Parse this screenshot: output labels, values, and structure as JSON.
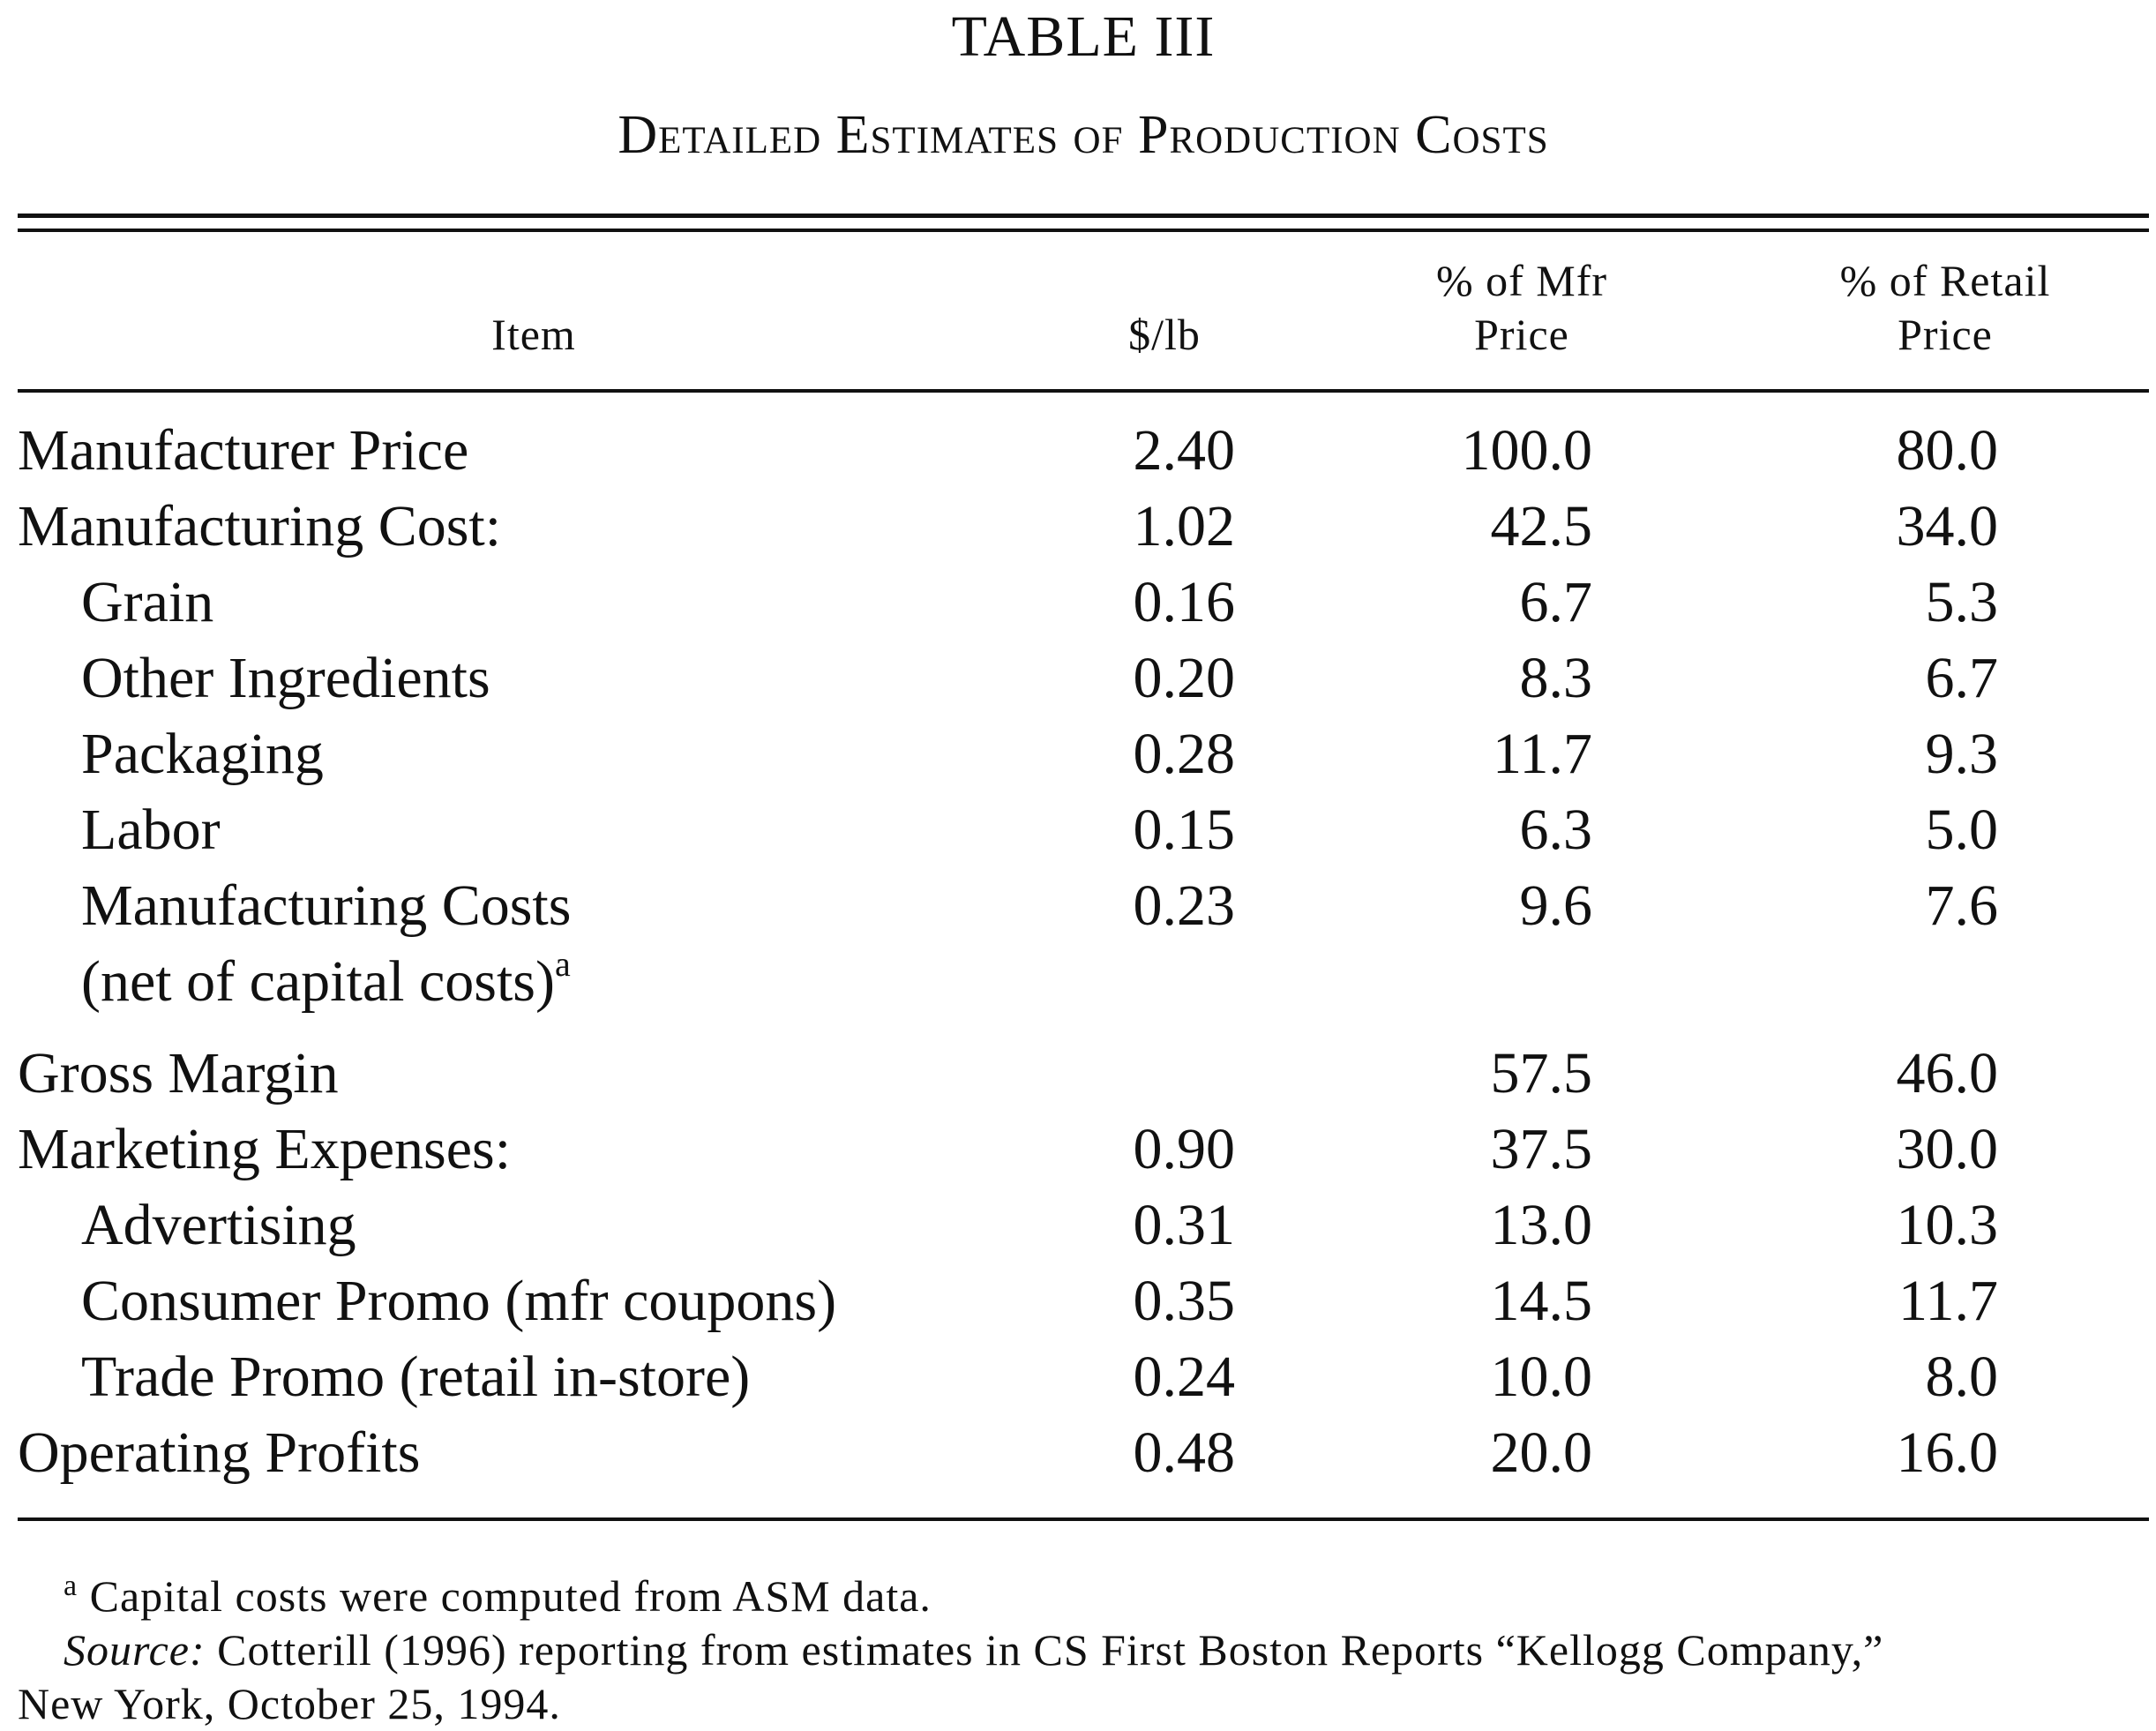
{
  "table": {
    "number": "TABLE III",
    "title": "Detailed Estimates of Production Costs",
    "headers": {
      "item": "Item",
      "per_lb": "$/lb",
      "pct_mfr_line1": "% of Mfr",
      "pct_mfr_line2": "Price",
      "pct_retail_line1": "% of Retail",
      "pct_retail_line2": "Price"
    },
    "rows": [
      {
        "item": "Manufacturer Price",
        "per_lb": "2.40",
        "pct_mfr": "100.0",
        "pct_retail": "80.0"
      },
      {
        "item": "Manufacturing Cost:",
        "per_lb": "1.02",
        "pct_mfr": "42.5",
        "pct_retail": "34.0"
      },
      {
        "item": "Grain",
        "per_lb": "0.16",
        "pct_mfr": "6.7",
        "pct_retail": "5.3"
      },
      {
        "item": "Other Ingredients",
        "per_lb": "0.20",
        "pct_mfr": "8.3",
        "pct_retail": "6.7"
      },
      {
        "item": "Packaging",
        "per_lb": "0.28",
        "pct_mfr": "11.7",
        "pct_retail": "9.3"
      },
      {
        "item": "Labor",
        "per_lb": "0.15",
        "pct_mfr": "6.3",
        "pct_retail": "5.0"
      },
      {
        "item": "Manufacturing Costs",
        "item_line2": "(net of capital costs)",
        "item_line2_sup": "a",
        "per_lb": "0.23",
        "pct_mfr": "9.6",
        "pct_retail": "7.6"
      },
      {
        "item": "Gross Margin",
        "per_lb": "",
        "pct_mfr": "57.5",
        "pct_retail": "46.0"
      },
      {
        "item": "Marketing Expenses:",
        "per_lb": "0.90",
        "pct_mfr": "37.5",
        "pct_retail": "30.0"
      },
      {
        "item": "Advertising",
        "per_lb": "0.31",
        "pct_mfr": "13.0",
        "pct_retail": "10.3"
      },
      {
        "item": "Consumer Promo (mfr coupons)",
        "per_lb": "0.35",
        "pct_mfr": "14.5",
        "pct_retail": "11.7"
      },
      {
        "item": "Trade Promo (retail in-store)",
        "per_lb": "0.24",
        "pct_mfr": "10.0",
        "pct_retail": "8.0"
      },
      {
        "item": "Operating Profits",
        "per_lb": "0.48",
        "pct_mfr": "20.0",
        "pct_retail": "16.0"
      }
    ],
    "footnotes": {
      "a_marker": "a",
      "a_text": "Capital costs were computed from ASM data.",
      "source_label": "Source:",
      "source_text": "Cotterill (1996) reporting from estimates in CS First Boston Reports “Kellogg Company,”",
      "source_text_line2": "New York, October 25, 1994."
    }
  }
}
